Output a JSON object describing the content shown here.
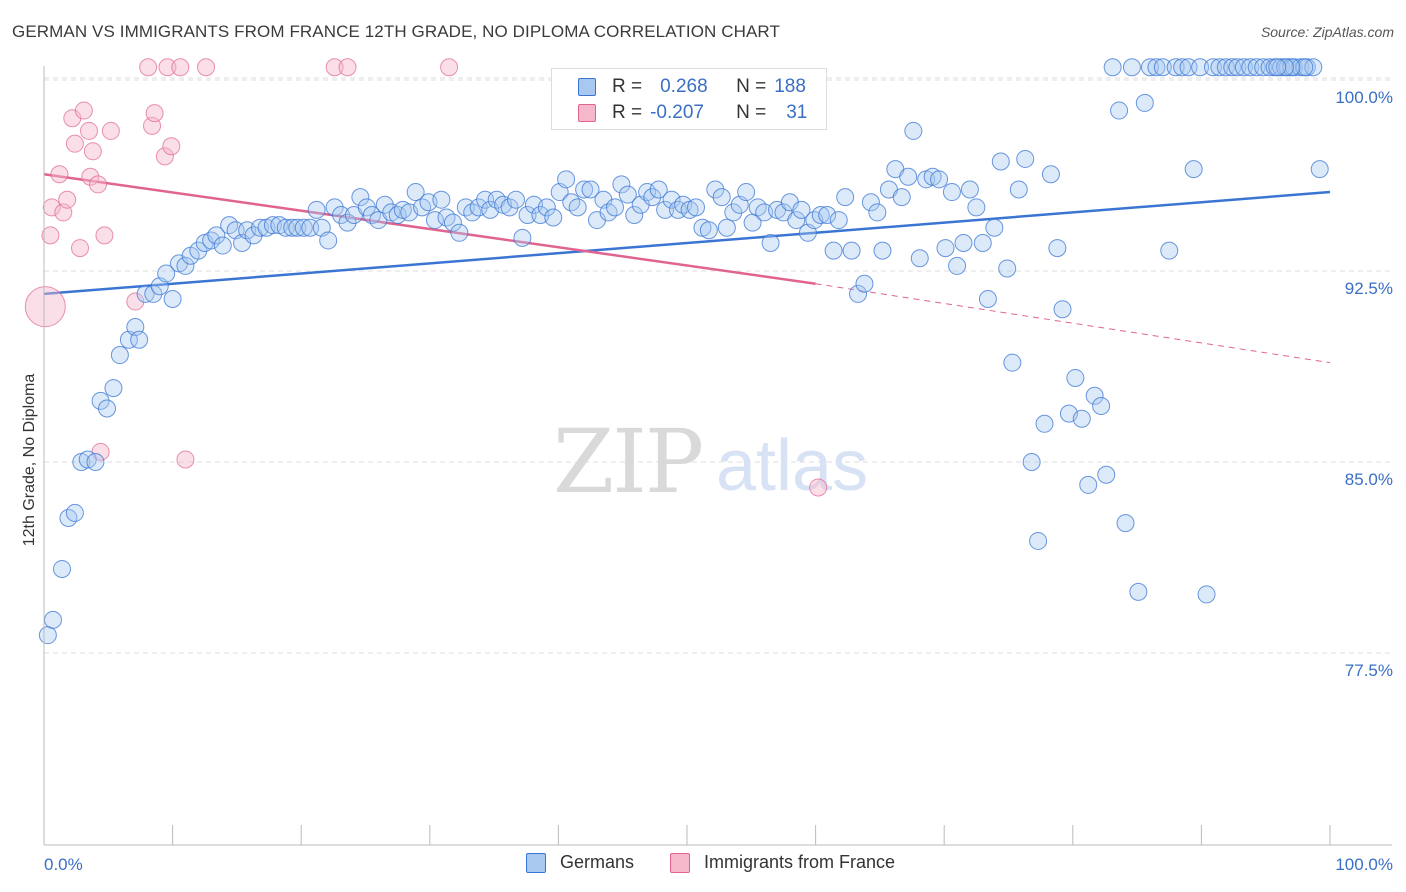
{
  "title": "GERMAN VS IMMIGRANTS FROM FRANCE 12TH GRADE, NO DIPLOMA CORRELATION CHART",
  "source": "Source: ZipAtlas.com",
  "watermark": {
    "zip": "ZIP",
    "atlas": "atlas"
  },
  "legend": {
    "germans": {
      "r_label": "R =",
      "r_value": "0.268",
      "n_label": "N =",
      "n_value": "188"
    },
    "france": {
      "r_label": "R =",
      "r_value": "-0.207",
      "n_label": "N =",
      "n_value": "31"
    }
  },
  "colors": {
    "blue": "#3a75d4",
    "blue_fill": "#a8c8f0",
    "pink": "#e0648f",
    "pink_fill": "#f5b8cb",
    "grid": "#dcdcdc",
    "tick_text_blue": "#3a6fc4"
  },
  "chart_data": {
    "type": "scatter",
    "xlabel": "",
    "ylabel": "12th Grade, No Diploma",
    "xlim": [
      0,
      100
    ],
    "ylim": [
      70.0,
      101.0
    ],
    "x_tick_labels": [
      "0.0%",
      "100.0%"
    ],
    "y_ticks": [
      77.5,
      85.0,
      92.5,
      100.0
    ],
    "y_tick_labels": [
      "77.5%",
      "85.0%",
      "92.5%",
      "100.0%"
    ],
    "grid": true,
    "legend_position": "bottom",
    "series": [
      {
        "name": "Germans",
        "color": "#3a75d4",
        "trend": {
          "x": [
            0,
            100
          ],
          "y": [
            91.6,
            95.6
          ],
          "style": "solid"
        },
        "points": [
          [
            0.3,
            78.2
          ],
          [
            0.7,
            78.8
          ],
          [
            1.4,
            80.8
          ],
          [
            1.9,
            82.8
          ],
          [
            2.4,
            83.0
          ],
          [
            2.9,
            85.0
          ],
          [
            3.4,
            85.1
          ],
          [
            4.0,
            85.0
          ],
          [
            4.4,
            87.4
          ],
          [
            4.9,
            87.1
          ],
          [
            5.4,
            87.9
          ],
          [
            5.9,
            89.2
          ],
          [
            6.6,
            89.8
          ],
          [
            7.1,
            90.3
          ],
          [
            7.4,
            89.8
          ],
          [
            7.9,
            91.6
          ],
          [
            8.5,
            91.6
          ],
          [
            9.0,
            91.9
          ],
          [
            9.5,
            92.4
          ],
          [
            10.0,
            91.4
          ],
          [
            10.5,
            92.8
          ],
          [
            11.0,
            92.7
          ],
          [
            11.4,
            93.1
          ],
          [
            12.0,
            93.3
          ],
          [
            12.5,
            93.6
          ],
          [
            13.0,
            93.7
          ],
          [
            13.4,
            93.9
          ],
          [
            13.9,
            93.5
          ],
          [
            14.4,
            94.3
          ],
          [
            14.9,
            94.1
          ],
          [
            15.4,
            93.6
          ],
          [
            15.8,
            94.1
          ],
          [
            16.3,
            93.9
          ],
          [
            16.8,
            94.2
          ],
          [
            17.3,
            94.2
          ],
          [
            17.8,
            94.3
          ],
          [
            18.3,
            94.3
          ],
          [
            18.8,
            94.2
          ],
          [
            19.3,
            94.2
          ],
          [
            19.7,
            94.2
          ],
          [
            20.2,
            94.2
          ],
          [
            20.7,
            94.2
          ],
          [
            21.2,
            94.9
          ],
          [
            21.6,
            94.2
          ],
          [
            22.1,
            93.7
          ],
          [
            22.6,
            95.0
          ],
          [
            23.1,
            94.7
          ],
          [
            23.6,
            94.4
          ],
          [
            24.1,
            94.7
          ],
          [
            24.6,
            95.4
          ],
          [
            25.1,
            95.0
          ],
          [
            25.5,
            94.7
          ],
          [
            26.0,
            94.5
          ],
          [
            26.5,
            95.1
          ],
          [
            27.0,
            94.8
          ],
          [
            27.5,
            94.7
          ],
          [
            27.9,
            94.9
          ],
          [
            28.4,
            94.8
          ],
          [
            28.9,
            95.6
          ],
          [
            29.4,
            95.0
          ],
          [
            29.9,
            95.2
          ],
          [
            30.4,
            94.5
          ],
          [
            30.9,
            95.3
          ],
          [
            31.3,
            94.6
          ],
          [
            31.8,
            94.4
          ],
          [
            32.3,
            94.0
          ],
          [
            32.8,
            95.0
          ],
          [
            33.3,
            94.8
          ],
          [
            33.8,
            95.0
          ],
          [
            34.3,
            95.3
          ],
          [
            34.7,
            94.9
          ],
          [
            35.2,
            95.3
          ],
          [
            35.7,
            95.1
          ],
          [
            36.2,
            95.0
          ],
          [
            36.7,
            95.3
          ],
          [
            37.2,
            93.8
          ],
          [
            37.6,
            94.7
          ],
          [
            38.1,
            95.1
          ],
          [
            38.6,
            94.7
          ],
          [
            39.1,
            95.0
          ],
          [
            39.6,
            94.6
          ],
          [
            40.1,
            95.6
          ],
          [
            40.6,
            96.1
          ],
          [
            41.0,
            95.2
          ],
          [
            41.5,
            95.0
          ],
          [
            42.0,
            95.7
          ],
          [
            42.5,
            95.7
          ],
          [
            43.0,
            94.5
          ],
          [
            43.5,
            95.3
          ],
          [
            43.9,
            94.8
          ],
          [
            44.4,
            95.0
          ],
          [
            44.9,
            95.9
          ],
          [
            45.4,
            95.5
          ],
          [
            45.9,
            94.7
          ],
          [
            46.4,
            95.1
          ],
          [
            46.9,
            95.6
          ],
          [
            47.3,
            95.4
          ],
          [
            47.8,
            95.7
          ],
          [
            48.3,
            94.9
          ],
          [
            48.8,
            95.3
          ],
          [
            49.3,
            94.9
          ],
          [
            49.7,
            95.1
          ],
          [
            50.2,
            94.9
          ],
          [
            50.7,
            95.0
          ],
          [
            51.2,
            94.2
          ],
          [
            51.7,
            94.1
          ],
          [
            52.2,
            95.7
          ],
          [
            52.7,
            95.4
          ],
          [
            53.1,
            94.2
          ],
          [
            53.6,
            94.8
          ],
          [
            54.1,
            95.1
          ],
          [
            54.6,
            95.6
          ],
          [
            55.1,
            94.4
          ],
          [
            55.5,
            95.0
          ],
          [
            56.0,
            94.8
          ],
          [
            56.5,
            93.6
          ],
          [
            57.0,
            94.9
          ],
          [
            57.5,
            94.8
          ],
          [
            58.0,
            95.2
          ],
          [
            58.5,
            94.5
          ],
          [
            58.9,
            94.9
          ],
          [
            59.4,
            94.0
          ],
          [
            59.9,
            94.5
          ],
          [
            60.4,
            94.7
          ],
          [
            60.9,
            94.7
          ],
          [
            61.4,
            93.3
          ],
          [
            61.8,
            94.5
          ],
          [
            62.3,
            95.4
          ],
          [
            62.8,
            93.3
          ],
          [
            63.3,
            91.6
          ],
          [
            63.8,
            92.0
          ],
          [
            64.3,
            95.2
          ],
          [
            64.8,
            94.8
          ],
          [
            65.2,
            93.3
          ],
          [
            65.7,
            95.7
          ],
          [
            66.2,
            96.5
          ],
          [
            66.7,
            95.4
          ],
          [
            67.2,
            96.2
          ],
          [
            67.6,
            98.0
          ],
          [
            68.1,
            93.0
          ],
          [
            68.6,
            96.1
          ],
          [
            69.1,
            96.2
          ],
          [
            69.6,
            96.1
          ],
          [
            70.1,
            93.4
          ],
          [
            70.6,
            95.6
          ],
          [
            71.0,
            92.7
          ],
          [
            71.5,
            93.6
          ],
          [
            72.0,
            95.7
          ],
          [
            72.5,
            95.0
          ],
          [
            73.0,
            93.6
          ],
          [
            73.4,
            91.4
          ],
          [
            73.9,
            94.2
          ],
          [
            74.4,
            96.8
          ],
          [
            74.9,
            92.6
          ],
          [
            75.3,
            88.9
          ],
          [
            75.8,
            95.7
          ],
          [
            76.3,
            96.9
          ],
          [
            76.8,
            85.0
          ],
          [
            77.3,
            81.9
          ],
          [
            77.8,
            86.5
          ],
          [
            78.3,
            96.3
          ],
          [
            78.8,
            93.4
          ],
          [
            79.2,
            91.0
          ],
          [
            79.7,
            86.9
          ],
          [
            80.2,
            88.3
          ],
          [
            80.7,
            86.7
          ],
          [
            81.2,
            84.1
          ],
          [
            81.7,
            87.6
          ],
          [
            82.2,
            87.2
          ],
          [
            82.6,
            84.5
          ],
          [
            83.1,
            100.5
          ],
          [
            83.6,
            98.8
          ],
          [
            84.1,
            82.6
          ],
          [
            84.6,
            100.5
          ],
          [
            85.1,
            79.9
          ],
          [
            85.6,
            99.1
          ],
          [
            86.0,
            100.5
          ],
          [
            86.5,
            100.5
          ],
          [
            87.0,
            100.5
          ],
          [
            87.5,
            93.3
          ],
          [
            88.0,
            100.5
          ],
          [
            88.5,
            100.5
          ],
          [
            89.0,
            100.5
          ],
          [
            89.4,
            96.5
          ],
          [
            89.9,
            100.5
          ],
          [
            90.4,
            79.8
          ],
          [
            90.9,
            100.5
          ],
          [
            91.4,
            100.5
          ],
          [
            91.9,
            100.5
          ],
          [
            92.4,
            100.5
          ],
          [
            92.8,
            100.5
          ],
          [
            93.3,
            100.5
          ],
          [
            93.8,
            100.5
          ],
          [
            94.3,
            100.5
          ],
          [
            94.8,
            100.5
          ],
          [
            95.3,
            100.5
          ],
          [
            95.7,
            100.5
          ],
          [
            96.2,
            100.5
          ],
          [
            96.7,
            100.5
          ],
          [
            97.2,
            100.5
          ],
          [
            97.7,
            100.5
          ],
          [
            98.2,
            100.5
          ],
          [
            98.7,
            100.5
          ],
          [
            99.2,
            96.5
          ],
          [
            98.0,
            100.5
          ],
          [
            97.0,
            100.5
          ],
          [
            96.5,
            100.5
          ],
          [
            95.9,
            100.5
          ]
        ]
      },
      {
        "name": "Immigrants from France",
        "color": "#e0648f",
        "trend": {
          "x": [
            0,
            60
          ],
          "y": [
            96.3,
            92.0
          ],
          "style": "solid",
          "dashed_extension": {
            "x": [
              60,
              100
            ],
            "y": [
              92.0,
              88.9
            ]
          }
        },
        "points": [
          [
            0.1,
            91.1
          ],
          [
            0.5,
            93.9
          ],
          [
            0.6,
            95.0
          ],
          [
            1.2,
            96.3
          ],
          [
            1.5,
            94.8
          ],
          [
            1.8,
            95.3
          ],
          [
            2.2,
            98.5
          ],
          [
            2.4,
            97.5
          ],
          [
            2.8,
            93.4
          ],
          [
            3.1,
            98.8
          ],
          [
            3.5,
            98.0
          ],
          [
            3.6,
            96.2
          ],
          [
            3.8,
            97.2
          ],
          [
            4.2,
            95.9
          ],
          [
            4.4,
            85.4
          ],
          [
            4.7,
            93.9
          ],
          [
            5.2,
            98.0
          ],
          [
            7.1,
            91.3
          ],
          [
            8.1,
            100.5
          ],
          [
            8.4,
            98.2
          ],
          [
            8.6,
            98.7
          ],
          [
            9.4,
            97.0
          ],
          [
            9.6,
            100.5
          ],
          [
            9.9,
            97.4
          ],
          [
            10.6,
            100.5
          ],
          [
            11.0,
            85.1
          ],
          [
            12.6,
            100.5
          ],
          [
            22.6,
            100.5
          ],
          [
            23.6,
            100.5
          ],
          [
            31.5,
            100.5
          ],
          [
            60.2,
            84.0
          ]
        ]
      }
    ]
  }
}
